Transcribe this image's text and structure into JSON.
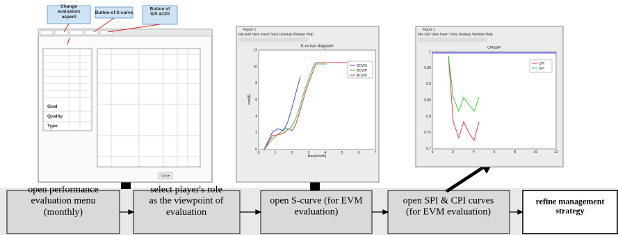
{
  "callouts": [
    "Change evaluation aspect",
    "Button of S-curve",
    "Button of SPI &CPI"
  ],
  "steps": [
    "open performance evaluation menu (monthly)",
    "select player's role as the viewpoint of evaluation",
    "open S-curve (for EVM evaluation)",
    "open SPI & CPI curves (for EVM evaluation)",
    "refine management strategy"
  ],
  "evaluation_window": {
    "rows": [
      "Goal",
      "Quality",
      "Type"
    ],
    "close_button": "Close"
  },
  "s_curve_window": {
    "window_title": "Figure 1",
    "menu": "File Edit View Insert Tools Desktop Window Help",
    "title": "S-curve diagram",
    "x_label": "time(month)",
    "y_label": "cost($)",
    "legend": [
      "BCWS",
      "BCWP",
      "ACWP"
    ],
    "xticks": [
      "0",
      "1",
      "2",
      "3",
      "4",
      "5",
      "6",
      "7"
    ],
    "yticks": [
      "0",
      "2",
      "4",
      "6",
      "8",
      "10",
      "12"
    ]
  },
  "spi_cpi_window": {
    "window_title": "Figure 1",
    "menu": "File Edit View Insert Tools Desktop Window Help",
    "title": "CPI&SPI",
    "legend": [
      "CPI",
      "SPI"
    ],
    "xticks": [
      "0",
      "2",
      "4",
      "6",
      "8",
      "10",
      "12"
    ],
    "yticks": [
      "0.7",
      "0.75",
      "0.8",
      "0.85",
      "0.9",
      "0.95",
      "1"
    ]
  }
}
